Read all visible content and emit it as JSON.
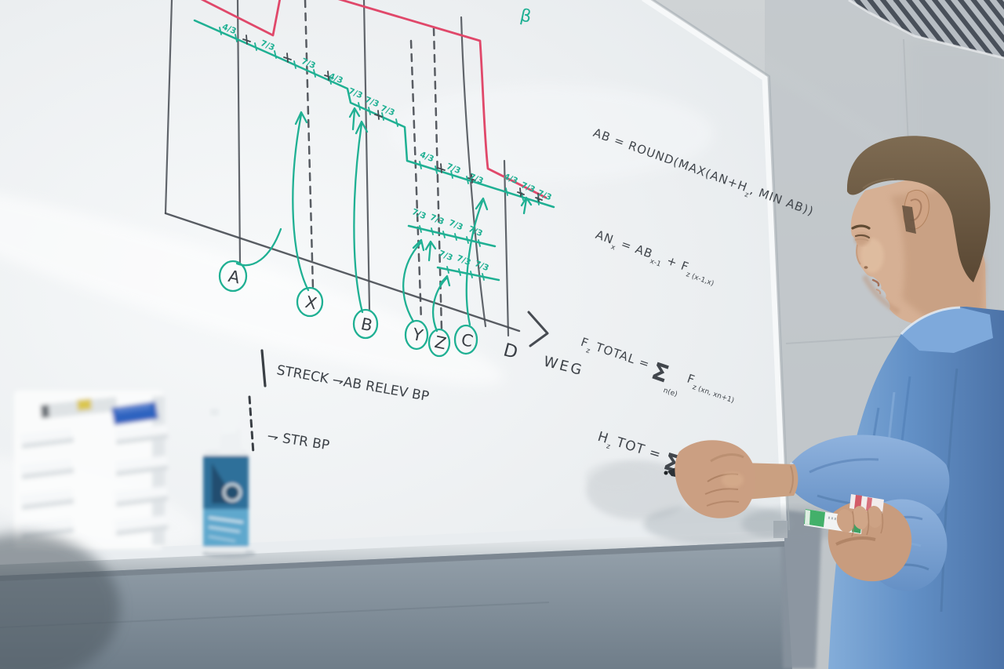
{
  "colors": {
    "red_marker": "#e0486a",
    "teal_marker": "#1fb093",
    "black_marker": "#3c4147",
    "shirt_blue": "#6b9ad0"
  },
  "whiteboard": {
    "beta": "β",
    "axis_label": "WEG",
    "breakpoints": [
      "A",
      "X",
      "B",
      "Y",
      "Z",
      "C",
      "D"
    ],
    "ticks": [
      "4/3",
      "7/3",
      "7/3",
      "4/3",
      "7/3",
      "7/3",
      "7/3",
      "4/3",
      "7/3",
      "7/3",
      "4/3",
      "7/3",
      "7/3",
      "7/3",
      "7/3",
      "7/3",
      "7/3",
      "7/3",
      "7/3",
      "7/3"
    ],
    "legend": {
      "line1": "STRECK ⇁AB RELEV BP",
      "line2": "⇁ STR BP"
    },
    "formulas": {
      "f1": {
        "segments": [
          {
            "t": "AB = ROUND(MAX(AN+H"
          },
          {
            "t": "z",
            "s": "sub"
          },
          {
            "t": ", MIN AB))"
          }
        ]
      },
      "f2": {
        "segments": [
          {
            "t": "AN"
          },
          {
            "t": "x",
            "s": "sub"
          },
          {
            "t": " = AB"
          },
          {
            "t": "x-1",
            "s": "sub"
          },
          {
            "t": " + F"
          },
          {
            "t": "z (x-1,x)",
            "s": "sub"
          }
        ]
      },
      "f3": {
        "segments": [
          {
            "t": "F"
          },
          {
            "t": "z",
            "s": "sub"
          },
          {
            "t": " TOTAL = "
          },
          {
            "t": "Σ",
            "s": "big"
          },
          {
            "t": "n(e)",
            "s": "under"
          },
          {
            "t": " F",
            "s": "n"
          },
          {
            "t": "z (xn, xn+1)",
            "s": "sub"
          }
        ]
      },
      "f4": {
        "segments": [
          {
            "t": "H"
          },
          {
            "t": "z",
            "s": "sub"
          },
          {
            "t": " TOT = "
          },
          {
            "t": "Σ",
            "s": "big"
          }
        ]
      }
    }
  }
}
